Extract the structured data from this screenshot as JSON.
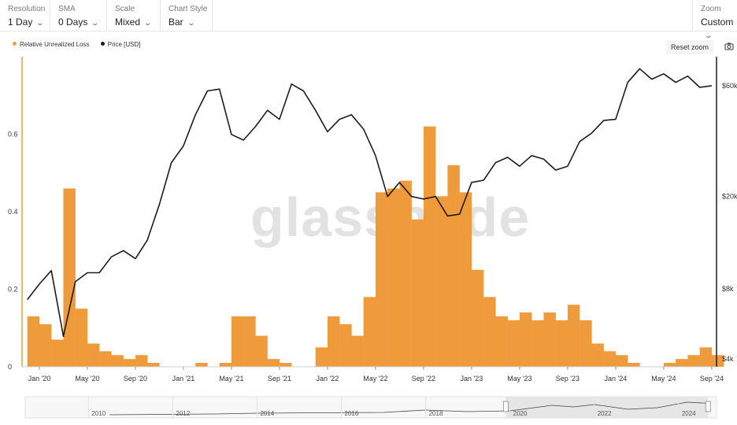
{
  "toolbar": {
    "resolution": {
      "label": "Resolution",
      "value": "1 Day"
    },
    "sma": {
      "label": "SMA",
      "value": "0 Days"
    },
    "scale": {
      "label": "Scale",
      "value": "Mixed"
    },
    "chart_style": {
      "label": "Chart Style",
      "value": "Bar"
    },
    "zoom": {
      "label": "Zoom",
      "value": "Custom"
    }
  },
  "reset_zoom_label": "Reset zoom",
  "camera_icon": "camera-icon",
  "watermark": "glassnode",
  "colors": {
    "loss": "#ef9a3b",
    "price": "#1c1c1c",
    "axis_left": "#ef9a3b",
    "axis_right": "#1c1c1c"
  },
  "navigator_ticks": [
    "2010",
    "2012",
    "2014",
    "2016",
    "2018",
    "2020",
    "2022",
    "2024"
  ],
  "chart_data": {
    "type": "bar",
    "legend": [
      "Relative Unrealized Loss",
      "Price [USD]"
    ],
    "legend_position": "top-left",
    "x_ticks": [
      "Jan '20",
      "May '20",
      "Sep '20",
      "Jan '21",
      "May '21",
      "Sep '21",
      "Jan '22",
      "May '22",
      "Sep '22",
      "Jan '23",
      "May '23",
      "Sep '23",
      "Jan '24",
      "May '24",
      "Sep '24"
    ],
    "y_left": {
      "ticks": [
        "0",
        "0.2",
        "0.4",
        "0.6"
      ],
      "range": [
        0,
        0.8
      ]
    },
    "y_right": {
      "ticks": [
        "$4k",
        "$8k",
        "$20k",
        "$60k"
      ],
      "scale": "log"
    },
    "series": [
      {
        "name": "Relative Unrealized Loss",
        "type": "bar",
        "x": [
          "2019-12",
          "2020-01",
          "2020-02",
          "2020-03",
          "2020-04",
          "2020-05",
          "2020-06",
          "2020-07",
          "2020-08",
          "2020-09",
          "2020-10",
          "2020-11",
          "2020-12",
          "2021-01",
          "2021-02",
          "2021-03",
          "2021-04",
          "2021-05",
          "2021-06",
          "2021-07",
          "2021-08",
          "2021-09",
          "2021-10",
          "2021-11",
          "2021-12",
          "2022-01",
          "2022-02",
          "2022-03",
          "2022-04",
          "2022-05",
          "2022-06",
          "2022-07",
          "2022-08",
          "2022-09",
          "2022-10",
          "2022-11",
          "2022-12",
          "2023-01",
          "2023-02",
          "2023-03",
          "2023-04",
          "2023-05",
          "2023-06",
          "2023-07",
          "2023-08",
          "2023-09",
          "2023-10",
          "2023-11",
          "2023-12",
          "2024-01",
          "2024-02",
          "2024-03",
          "2024-04",
          "2024-05",
          "2024-06",
          "2024-07",
          "2024-08",
          "2024-09"
        ],
        "values": [
          0.13,
          0.11,
          0.07,
          0.46,
          0.15,
          0.06,
          0.04,
          0.03,
          0.02,
          0.03,
          0.01,
          0.0,
          0.0,
          0.0,
          0.01,
          0.0,
          0.01,
          0.13,
          0.13,
          0.08,
          0.02,
          0.01,
          0.0,
          0.0,
          0.05,
          0.13,
          0.11,
          0.08,
          0.18,
          0.45,
          0.46,
          0.48,
          0.38,
          0.62,
          0.44,
          0.52,
          0.45,
          0.25,
          0.18,
          0.13,
          0.12,
          0.14,
          0.12,
          0.14,
          0.12,
          0.16,
          0.12,
          0.06,
          0.04,
          0.03,
          0.01,
          0.0,
          0.0,
          0.01,
          0.02,
          0.03,
          0.05,
          0.03
        ]
      },
      {
        "name": "Price [USD]",
        "type": "line",
        "x": [
          "2019-12",
          "2020-01",
          "2020-02",
          "2020-03",
          "2020-04",
          "2020-05",
          "2020-06",
          "2020-07",
          "2020-08",
          "2020-09",
          "2020-10",
          "2020-11",
          "2020-12",
          "2021-01",
          "2021-02",
          "2021-03",
          "2021-04",
          "2021-05",
          "2021-06",
          "2021-07",
          "2021-08",
          "2021-09",
          "2021-10",
          "2021-11",
          "2021-12",
          "2022-01",
          "2022-02",
          "2022-03",
          "2022-04",
          "2022-05",
          "2022-06",
          "2022-07",
          "2022-08",
          "2022-09",
          "2022-10",
          "2022-11",
          "2022-12",
          "2023-01",
          "2023-02",
          "2023-03",
          "2023-04",
          "2023-05",
          "2023-06",
          "2023-07",
          "2023-08",
          "2023-09",
          "2023-10",
          "2023-11",
          "2023-12",
          "2024-01",
          "2024-02",
          "2024-03",
          "2024-04",
          "2024-05",
          "2024-06",
          "2024-07",
          "2024-08",
          "2024-09"
        ],
        "values": [
          7200,
          8400,
          9600,
          5000,
          8600,
          9400,
          9400,
          11000,
          11700,
          10800,
          13000,
          18500,
          28000,
          33000,
          45000,
          57000,
          58000,
          37000,
          35000,
          40000,
          47000,
          43000,
          61000,
          57000,
          47000,
          38000,
          43000,
          45000,
          39000,
          30000,
          20000,
          23000,
          20000,
          19500,
          20000,
          16500,
          16800,
          23000,
          23500,
          28000,
          29500,
          27000,
          30000,
          29000,
          26000,
          27000,
          34500,
          37500,
          42500,
          43000,
          62000,
          71000,
          64000,
          67500,
          62000,
          66000,
          59000,
          60000
        ]
      }
    ]
  }
}
